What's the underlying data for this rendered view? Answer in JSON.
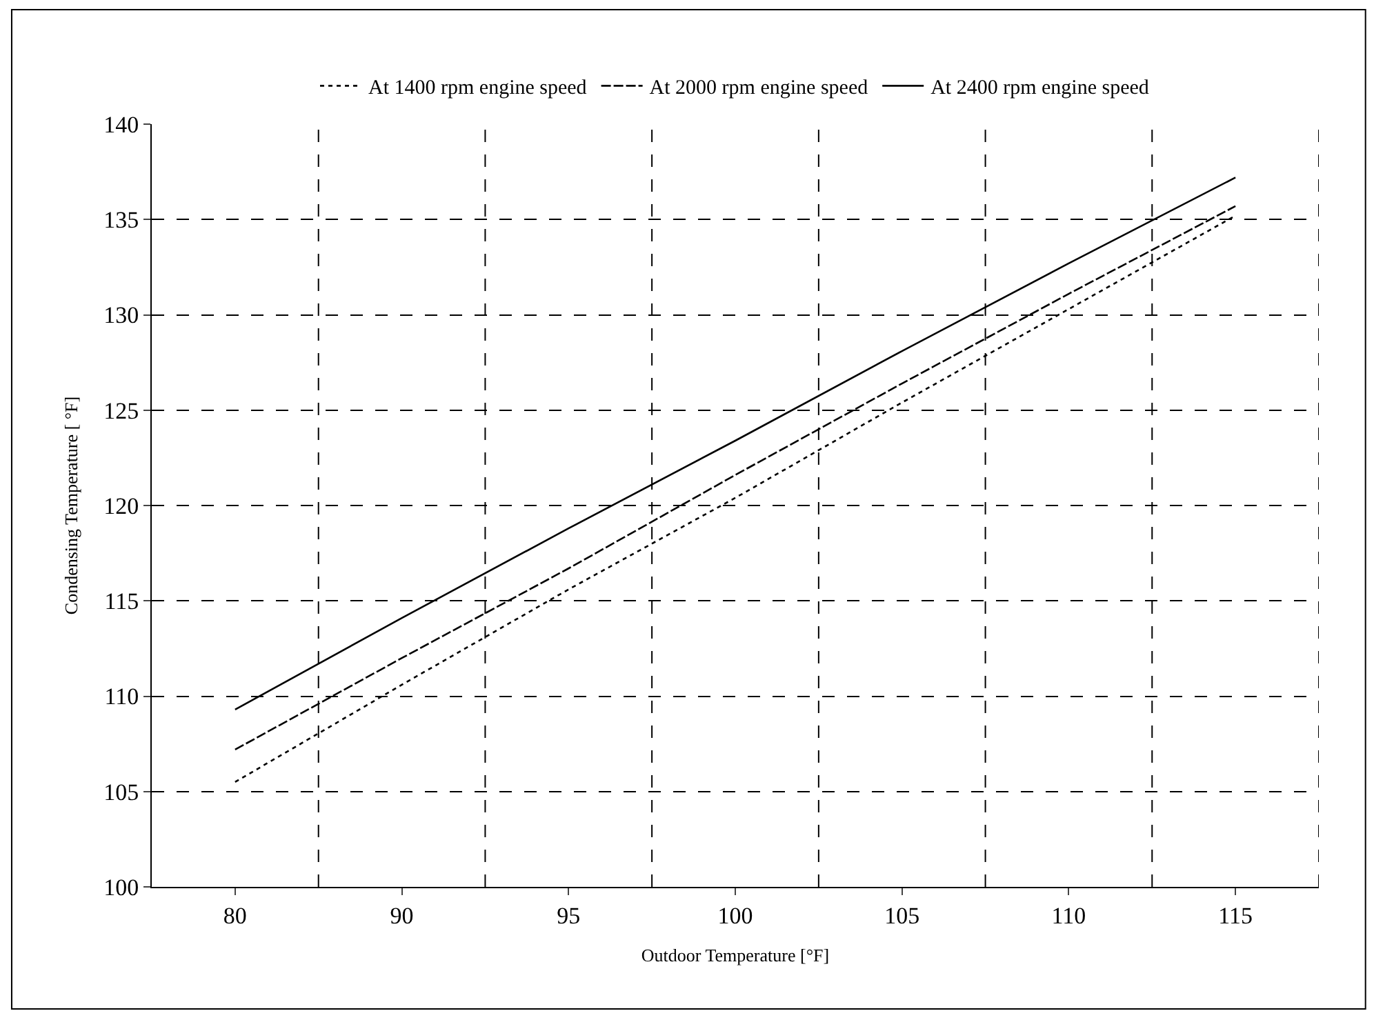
{
  "chart_data": {
    "type": "line",
    "xlabel": "Outdoor Temperature [°F]",
    "ylabel": "Condensing Temperature [ °F]",
    "categories": [
      "80",
      "90",
      "95",
      "100",
      "105",
      "110",
      "115"
    ],
    "series": [
      {
        "name": "At 1400 rpm engine speed",
        "color": "#000000",
        "line_style": "dotted",
        "values": [
          105.5,
          110.6,
          115.6,
          120.4,
          125.4,
          130.3,
          135.2
        ]
      },
      {
        "name": "At 2000 rpm engine speed",
        "color": "#000000",
        "line_style": "dashed",
        "values": [
          107.2,
          112.0,
          116.7,
          121.6,
          126.4,
          131.1,
          135.7
        ]
      },
      {
        "name": "At 2400 rpm engine speed",
        "color": "#000000",
        "line_style": "solid",
        "values": [
          109.3,
          114.1,
          118.8,
          123.4,
          128.1,
          132.7,
          137.2
        ]
      }
    ],
    "ylim": [
      100,
      140
    ],
    "yticks": [
      100,
      105,
      110,
      115,
      120,
      125,
      130,
      135,
      140
    ],
    "grid": true,
    "legend": "top",
    "marker": "none"
  }
}
